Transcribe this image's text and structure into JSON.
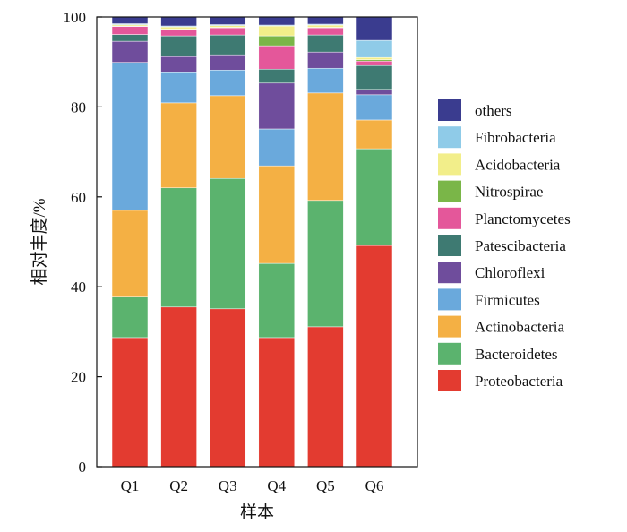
{
  "chart_data": {
    "type": "bar",
    "stacked": true,
    "categories": [
      "Q1",
      "Q2",
      "Q3",
      "Q4",
      "Q5",
      "Q6"
    ],
    "xlabel": "样本",
    "ylabel": "相对丰度/%",
    "ylim": [
      0,
      100
    ],
    "yticks": [
      0,
      20,
      40,
      60,
      80,
      100
    ],
    "grid": false,
    "legend_position": "right",
    "series": [
      {
        "name": "Proteobacteria",
        "color": "#e33b30",
        "values": [
          28.7,
          35.5,
          35.1,
          28.7,
          31.1,
          49.2
        ]
      },
      {
        "name": "Bacteroidetes",
        "color": "#5bb36e",
        "values": [
          9.0,
          26.5,
          29.0,
          16.5,
          28.1,
          21.5
        ]
      },
      {
        "name": "Actinobacteria",
        "color": "#f4b044",
        "values": [
          19.3,
          18.9,
          18.4,
          21.7,
          23.9,
          6.4
        ]
      },
      {
        "name": "Firmicutes",
        "color": "#6aa9dc",
        "values": [
          32.9,
          6.9,
          5.7,
          8.2,
          5.5,
          5.6
        ]
      },
      {
        "name": "Chloroflexi",
        "color": "#6f4d9c",
        "values": [
          4.7,
          3.4,
          3.4,
          10.2,
          3.6,
          1.2
        ]
      },
      {
        "name": "Patescibacteria",
        "color": "#3e7a72",
        "values": [
          1.5,
          4.6,
          4.4,
          3.1,
          3.8,
          5.3
        ]
      },
      {
        "name": "Planctomycetes",
        "color": "#e4579a",
        "values": [
          1.8,
          1.4,
          1.6,
          5.2,
          1.6,
          1.0
        ]
      },
      {
        "name": "Nitrospirae",
        "color": "#7ab648",
        "values": [
          0.1,
          0.1,
          0.1,
          2.2,
          0.1,
          0.3
        ]
      },
      {
        "name": "Acidobacteria",
        "color": "#f2ee8a",
        "values": [
          0.3,
          0.5,
          0.4,
          2.2,
          0.5,
          0.5
        ]
      },
      {
        "name": "Fibrobacteria",
        "color": "#8fcbe8",
        "values": [
          0.2,
          0.2,
          0.2,
          0.2,
          0.2,
          3.8
        ]
      },
      {
        "name": "others",
        "color": "#3a3c8f",
        "values": [
          1.5,
          2.0,
          1.7,
          1.8,
          1.6,
          5.2
        ]
      }
    ]
  }
}
